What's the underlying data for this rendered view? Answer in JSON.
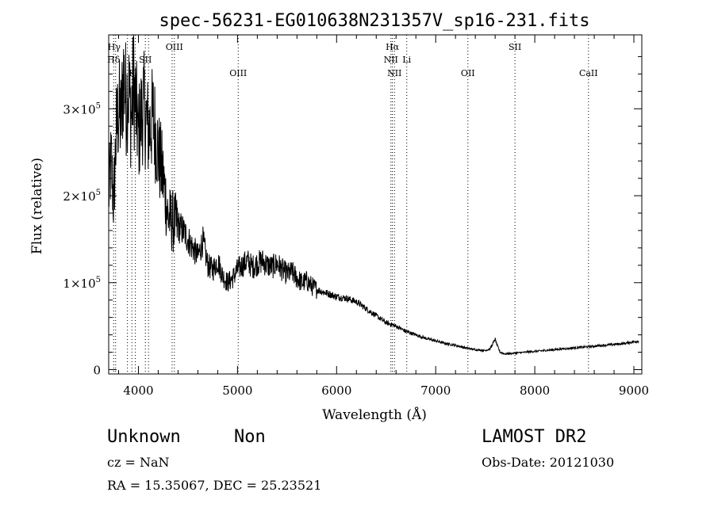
{
  "chart_data": {
    "type": "line",
    "title": "spec-56231-EG010638N231357V_sp16-231.fits",
    "xlabel": "Wavelength (Å)",
    "ylabel": "Flux (relative)",
    "xlim": [
      3700,
      9080
    ],
    "ylim": [
      -5000,
      385000
    ],
    "x_ticks": [
      4000,
      5000,
      6000,
      7000,
      8000,
      9000
    ],
    "x_tick_labels": [
      "4000",
      "5000",
      "6000",
      "7000",
      "8000",
      "9000"
    ],
    "y_ticks": [
      0,
      100000,
      200000,
      300000
    ],
    "y_tick_labels": [
      {
        "base": "0",
        "exp": ""
      },
      {
        "base": "1×10",
        "exp": "5"
      },
      {
        "base": "2×10",
        "exp": "5"
      },
      {
        "base": "3×10",
        "exp": "5"
      }
    ],
    "grid": false,
    "series": [
      {
        "color": "#000000",
        "x": [
          3700,
          3725,
          3750,
          3775,
          3800,
          3825,
          3850,
          3875,
          3900,
          3925,
          3950,
          3975,
          4000,
          4050,
          4100,
          4150,
          4200,
          4250,
          4300,
          4350,
          4400,
          4450,
          4500,
          4550,
          4600,
          4650,
          4700,
          4750,
          4800,
          4850,
          4900,
          4950,
          5000,
          5050,
          5100,
          5150,
          5200,
          5250,
          5300,
          5350,
          5400,
          5450,
          5500,
          5550,
          5600,
          5650,
          5700,
          5750,
          5800,
          5900,
          6000,
          6100,
          6200,
          6300,
          6400,
          6500,
          6600,
          6700,
          6800,
          6900,
          7000,
          7100,
          7200,
          7300,
          7400,
          7500,
          7550,
          7600,
          7620,
          7650,
          7700,
          7800,
          7900,
          8000,
          8100,
          8200,
          8300,
          8400,
          8500,
          8600,
          8700,
          8800,
          8900,
          9000,
          9050
        ],
        "y": [
          200000,
          240000,
          190000,
          270000,
          300000,
          285000,
          340000,
          310000,
          325000,
          290000,
          330000,
          300000,
          270000,
          305000,
          275000,
          290000,
          250000,
          220000,
          175000,
          170000,
          165000,
          160000,
          150000,
          140000,
          130000,
          148000,
          120000,
          115000,
          125000,
          108000,
          100000,
          105000,
          115000,
          120000,
          125000,
          118000,
          122000,
          125000,
          120000,
          118000,
          122000,
          115000,
          110000,
          112000,
          105000,
          100000,
          102000,
          96000,
          92000,
          88000,
          84000,
          82000,
          78000,
          70000,
          62000,
          54000,
          50000,
          44000,
          40000,
          36000,
          33000,
          30000,
          28000,
          25000,
          23000,
          22000,
          24000,
          35000,
          28000,
          20000,
          18000,
          19000,
          20000,
          21000,
          22000,
          23000,
          24000,
          25000,
          26000,
          27000,
          28000,
          29000,
          30000,
          32000,
          33000
        ]
      }
    ],
    "annotations": [
      {
        "label": "Hγ",
        "wavelength": 3755,
        "row": 1
      },
      {
        "label": "Hδ",
        "wavelength": 3750,
        "row": 2
      },
      {
        "label": "K",
        "wavelength": 3935,
        "row": 3
      },
      {
        "label": "SII",
        "wavelength": 4070,
        "row": 2
      },
      {
        "label": "OIII",
        "wavelength": 4363,
        "row": 1
      },
      {
        "label": "OIII",
        "wavelength": 5007,
        "row": 3
      },
      {
        "label": "Hα",
        "wavelength": 6563,
        "row": 1
      },
      {
        "label": "NII",
        "wavelength": 6548,
        "row": 2
      },
      {
        "label": "Li",
        "wavelength": 6708,
        "row": 2
      },
      {
        "label": "NII",
        "wavelength": 6584,
        "row": 3
      },
      {
        "label": "OII",
        "wavelength": 7325,
        "row": 3
      },
      {
        "label": "SII",
        "wavelength": 7800,
        "row": 1
      },
      {
        "label": "CaII",
        "wavelength": 8542,
        "row": 3
      }
    ],
    "line_markers": [
      3750,
      3770,
      3889,
      3934,
      3969,
      4070,
      4102,
      4340,
      4363,
      5007,
      6548,
      6563,
      6584,
      6708,
      7325,
      7800,
      8542
    ]
  },
  "footer": {
    "classification": "Unknown",
    "subclass": "Non",
    "survey": "LAMOST DR2",
    "cz": "cz = NaN",
    "obs_date": "Obs-Date: 20121030",
    "radec": "RA =  15.35067, DEC =  25.23521"
  }
}
